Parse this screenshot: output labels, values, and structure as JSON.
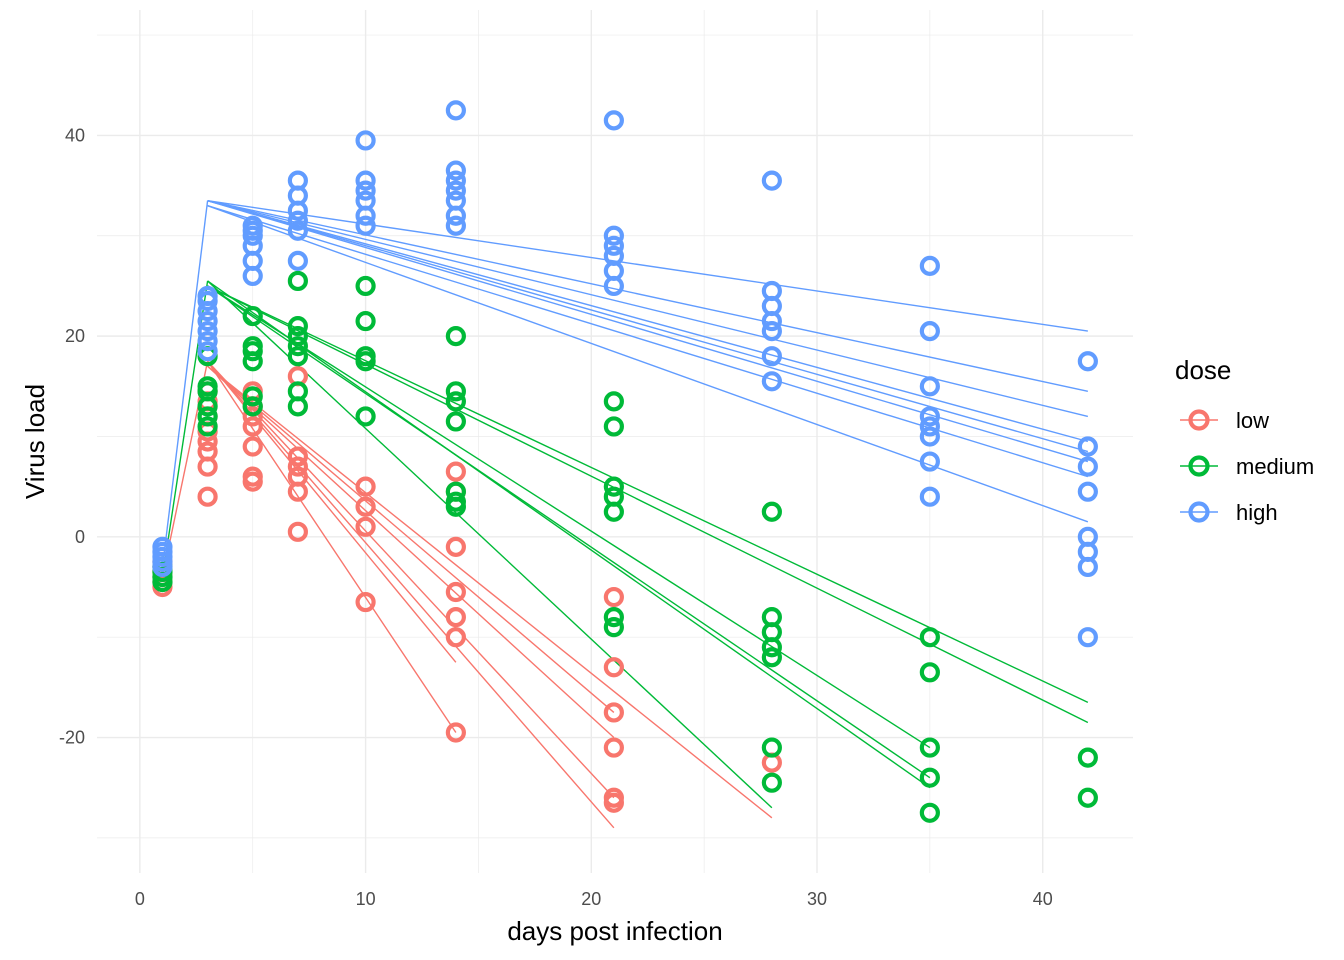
{
  "chart_data": {
    "type": "scatter",
    "xlabel": "days post infection",
    "ylabel": "Virus load",
    "xlim": [
      -1.9,
      44
    ],
    "ylim": [
      -33.5,
      52.5
    ],
    "x_ticks": [
      0,
      10,
      20,
      30,
      40
    ],
    "y_ticks": [
      -20,
      0,
      20,
      40
    ],
    "grid": true,
    "legend": {
      "title": "dose",
      "position": "right"
    },
    "series": [
      {
        "name": "low",
        "color": "#F8766D",
        "points": [
          [
            1,
            -5
          ],
          [
            1,
            -4.5
          ],
          [
            1,
            -4
          ],
          [
            1,
            -3.5
          ],
          [
            1,
            -3
          ],
          [
            1,
            -2.5
          ],
          [
            3,
            4
          ],
          [
            3,
            7
          ],
          [
            3,
            8.5
          ],
          [
            3,
            9.5
          ],
          [
            3,
            10.5
          ],
          [
            3,
            12
          ],
          [
            3,
            13.5
          ],
          [
            3,
            14.5
          ],
          [
            5,
            5.5
          ],
          [
            5,
            6
          ],
          [
            5,
            9
          ],
          [
            5,
            11
          ],
          [
            5,
            12
          ],
          [
            5,
            13
          ],
          [
            5,
            14.5
          ],
          [
            7,
            0.5
          ],
          [
            7,
            4.5
          ],
          [
            7,
            6
          ],
          [
            7,
            7
          ],
          [
            7,
            8
          ],
          [
            7,
            16
          ],
          [
            10,
            -6.5
          ],
          [
            10,
            1
          ],
          [
            10,
            3
          ],
          [
            10,
            5
          ],
          [
            14,
            -19.5
          ],
          [
            14,
            -10
          ],
          [
            14,
            -8
          ],
          [
            14,
            -5.5
          ],
          [
            14,
            -1
          ],
          [
            14,
            4.5
          ],
          [
            14,
            6.5
          ],
          [
            21,
            -26.5
          ],
          [
            21,
            -26
          ],
          [
            21,
            -21
          ],
          [
            21,
            -17.5
          ],
          [
            21,
            -13
          ],
          [
            21,
            -6
          ],
          [
            28,
            -22.5
          ]
        ],
        "fits": [
          [
            [
              3,
              17.5
            ],
            [
              14,
              -19.5
            ]
          ],
          [
            [
              3,
              17.5
            ],
            [
              14,
              -12.5
            ]
          ],
          [
            [
              3,
              17.5
            ],
            [
              21,
              -29
            ]
          ],
          [
            [
              3,
              17.5
            ],
            [
              21,
              -26
            ]
          ],
          [
            [
              3,
              17
            ],
            [
              21,
              -20
            ]
          ],
          [
            [
              3,
              17
            ],
            [
              21,
              -17.5
            ]
          ],
          [
            [
              3,
              17
            ],
            [
              28,
              -28
            ]
          ]
        ]
      },
      {
        "name": "medium",
        "color": "#00BA38",
        "points": [
          [
            1,
            -4.5
          ],
          [
            1,
            -4
          ],
          [
            1,
            -3.5
          ],
          [
            1,
            -3
          ],
          [
            3,
            11
          ],
          [
            3,
            12
          ],
          [
            3,
            13
          ],
          [
            3,
            14.5
          ],
          [
            3,
            15
          ],
          [
            3,
            18
          ],
          [
            5,
            13
          ],
          [
            5,
            14
          ],
          [
            5,
            17.5
          ],
          [
            5,
            18.5
          ],
          [
            5,
            19
          ],
          [
            5,
            22
          ],
          [
            7,
            13
          ],
          [
            7,
            14.5
          ],
          [
            7,
            18
          ],
          [
            7,
            19
          ],
          [
            7,
            20
          ],
          [
            7,
            21
          ],
          [
            7,
            25.5
          ],
          [
            10,
            12
          ],
          [
            10,
            17.5
          ],
          [
            10,
            18
          ],
          [
            10,
            21.5
          ],
          [
            10,
            25
          ],
          [
            14,
            3
          ],
          [
            14,
            3.5
          ],
          [
            14,
            4.5
          ],
          [
            14,
            11.5
          ],
          [
            14,
            13.5
          ],
          [
            14,
            14.5
          ],
          [
            14,
            20
          ],
          [
            21,
            -9
          ],
          [
            21,
            -8
          ],
          [
            21,
            2.5
          ],
          [
            21,
            4
          ],
          [
            21,
            5
          ],
          [
            21,
            11
          ],
          [
            21,
            13.5
          ],
          [
            28,
            -24.5
          ],
          [
            28,
            -21
          ],
          [
            28,
            -12
          ],
          [
            28,
            -11
          ],
          [
            28,
            -9.5
          ],
          [
            28,
            -8
          ],
          [
            28,
            2.5
          ],
          [
            35,
            -27.5
          ],
          [
            35,
            -24
          ],
          [
            35,
            -21
          ],
          [
            35,
            -13.5
          ],
          [
            35,
            -10
          ],
          [
            42,
            -26
          ],
          [
            42,
            -22
          ]
        ],
        "fits": [
          [
            [
              3,
              25.5
            ],
            [
              28,
              -27
            ]
          ],
          [
            [
              3,
              25.5
            ],
            [
              35,
              -25
            ]
          ],
          [
            [
              3,
              25
            ],
            [
              35,
              -24
            ]
          ],
          [
            [
              3,
              25
            ],
            [
              35,
              -21
            ]
          ],
          [
            [
              3,
              25
            ],
            [
              42,
              -16.5
            ]
          ],
          [
            [
              3,
              25
            ],
            [
              42,
              -18.5
            ]
          ]
        ]
      },
      {
        "name": "high",
        "color": "#619CFF",
        "points": [
          [
            1,
            -3
          ],
          [
            1,
            -2.5
          ],
          [
            1,
            -2
          ],
          [
            1,
            -1.5
          ],
          [
            1,
            -1
          ],
          [
            3,
            18.5
          ],
          [
            3,
            19.5
          ],
          [
            3,
            20.5
          ],
          [
            3,
            21.5
          ],
          [
            3,
            22.5
          ],
          [
            3,
            23.5
          ],
          [
            3,
            24
          ],
          [
            5,
            26
          ],
          [
            5,
            27.5
          ],
          [
            5,
            29
          ],
          [
            5,
            30
          ],
          [
            5,
            30.5
          ],
          [
            5,
            31
          ],
          [
            7,
            27.5
          ],
          [
            7,
            30.5
          ],
          [
            7,
            31.5
          ],
          [
            7,
            32.5
          ],
          [
            7,
            34
          ],
          [
            7,
            35.5
          ],
          [
            10,
            31
          ],
          [
            10,
            32
          ],
          [
            10,
            33.5
          ],
          [
            10,
            34.5
          ],
          [
            10,
            35.5
          ],
          [
            10,
            39.5
          ],
          [
            14,
            31
          ],
          [
            14,
            32
          ],
          [
            14,
            33.5
          ],
          [
            14,
            34.5
          ],
          [
            14,
            35.5
          ],
          [
            14,
            36.5
          ],
          [
            14,
            42.5
          ],
          [
            21,
            25
          ],
          [
            21,
            26.5
          ],
          [
            21,
            28
          ],
          [
            21,
            29
          ],
          [
            21,
            30
          ],
          [
            21,
            41.5
          ],
          [
            28,
            15.5
          ],
          [
            28,
            18
          ],
          [
            28,
            20.5
          ],
          [
            28,
            21.5
          ],
          [
            28,
            23
          ],
          [
            28,
            24.5
          ],
          [
            28,
            35.5
          ],
          [
            35,
            4
          ],
          [
            35,
            7.5
          ],
          [
            35,
            10
          ],
          [
            35,
            11
          ],
          [
            35,
            12
          ],
          [
            35,
            15
          ],
          [
            35,
            20.5
          ],
          [
            35,
            27
          ],
          [
            42,
            -10
          ],
          [
            42,
            -3
          ],
          [
            42,
            -1.5
          ],
          [
            42,
            0
          ],
          [
            42,
            4.5
          ],
          [
            42,
            7
          ],
          [
            42,
            9
          ],
          [
            42,
            17.5
          ]
        ],
        "fits": [
          [
            [
              3,
              33.5
            ],
            [
              42,
              20.5
            ]
          ],
          [
            [
              3,
              33.5
            ],
            [
              42,
              14.5
            ]
          ],
          [
            [
              3,
              33.5
            ],
            [
              42,
              12
            ]
          ],
          [
            [
              3,
              33.5
            ],
            [
              42,
              9.5
            ]
          ],
          [
            [
              3,
              33.5
            ],
            [
              42,
              8.5
            ]
          ],
          [
            [
              3,
              33.5
            ],
            [
              42,
              7.5
            ]
          ],
          [
            [
              3,
              33
            ],
            [
              42,
              6
            ]
          ],
          [
            [
              3,
              33
            ],
            [
              42,
              1.5
            ]
          ]
        ]
      }
    ],
    "initial_segments": [
      {
        "series": "low",
        "from": [
          1,
          -4
        ],
        "to": [
          3,
          17.5
        ]
      },
      {
        "series": "medium",
        "from": [
          1,
          -4
        ],
        "to": [
          3,
          25.5
        ]
      },
      {
        "series": "high",
        "from": [
          1,
          -3
        ],
        "to": [
          3,
          33.5
        ]
      }
    ]
  }
}
